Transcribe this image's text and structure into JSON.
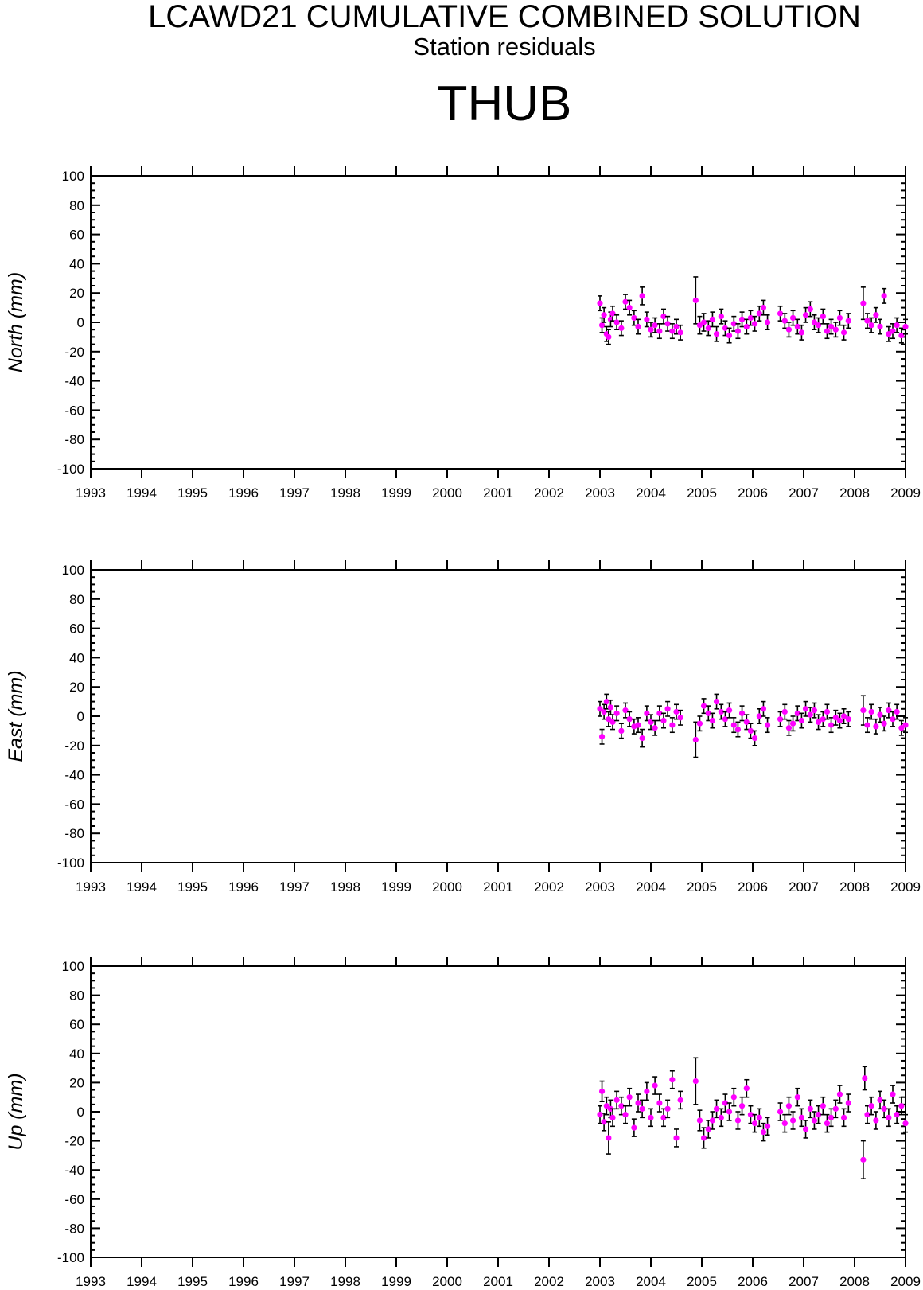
{
  "header": {
    "title": "LCAWD21 CUMULATIVE COMBINED SOLUTION",
    "subtitle": "Station residuals",
    "station": "THUB"
  },
  "colors": {
    "marker": "#ff00ff",
    "errorbar": "#000000",
    "axis": "#000000"
  },
  "chart_data": [
    {
      "type": "scatter",
      "ylabel": "North (mm)",
      "xlim": [
        1993,
        2009
      ],
      "ylim": [
        -100,
        100
      ],
      "xticks": [
        "1993",
        "1994",
        "1995",
        "1996",
        "1997",
        "1998",
        "1999",
        "2000",
        "2001",
        "2002",
        "2003",
        "2004",
        "2005",
        "2006",
        "2007",
        "2008",
        "2009"
      ],
      "yticks": [
        "100",
        "80",
        "60",
        "40",
        "20",
        "0",
        "-20",
        "-40",
        "-60",
        "-80",
        "-100"
      ],
      "grid": false,
      "x": [
        2003.0,
        2003.04,
        2003.08,
        2003.13,
        2003.17,
        2003.21,
        2003.25,
        2003.33,
        2003.42,
        2003.5,
        2003.58,
        2003.67,
        2003.75,
        2003.83,
        2003.92,
        2004.0,
        2004.08,
        2004.17,
        2004.25,
        2004.33,
        2004.42,
        2004.5,
        2004.58,
        2004.88,
        2004.96,
        2005.04,
        2005.13,
        2005.21,
        2005.29,
        2005.38,
        2005.46,
        2005.54,
        2005.63,
        2005.71,
        2005.79,
        2005.88,
        2005.96,
        2006.04,
        2006.13,
        2006.21,
        2006.29,
        2006.54,
        2006.63,
        2006.71,
        2006.79,
        2006.88,
        2006.96,
        2007.04,
        2007.13,
        2007.21,
        2007.29,
        2007.38,
        2007.46,
        2007.54,
        2007.63,
        2007.71,
        2007.79,
        2007.88,
        2008.17,
        2008.25,
        2008.33,
        2008.42,
        2008.5,
        2008.58,
        2008.67,
        2008.75,
        2008.83,
        2008.92,
        2009.0
      ],
      "y": [
        13,
        -2,
        5,
        -8,
        -10,
        2,
        6,
        0,
        -4,
        14,
        10,
        3,
        -3,
        18,
        2,
        -5,
        -2,
        -6,
        4,
        -1,
        -6,
        -3,
        -7,
        15,
        -2,
        0,
        -4,
        2,
        -8,
        4,
        -4,
        -9,
        -1,
        -6,
        2,
        -3,
        3,
        -1,
        6,
        10,
        0,
        6,
        1,
        -5,
        3,
        -3,
        -7,
        5,
        9,
        0,
        -2,
        4,
        -6,
        -3,
        -5,
        3,
        -7,
        1,
        13,
        1,
        -2,
        5,
        -3,
        18,
        -8,
        -6,
        -2,
        -9,
        -3
      ],
      "err": [
        5,
        5,
        5,
        5,
        5,
        5,
        5,
        5,
        5,
        5,
        5,
        5,
        5,
        6,
        5,
        5,
        5,
        5,
        5,
        5,
        5,
        5,
        5,
        16,
        6,
        6,
        5,
        5,
        5,
        5,
        5,
        5,
        5,
        5,
        5,
        5,
        5,
        5,
        5,
        5,
        5,
        5,
        5,
        5,
        5,
        5,
        5,
        5,
        5,
        5,
        5,
        5,
        5,
        5,
        5,
        5,
        5,
        5,
        11,
        5,
        5,
        5,
        5,
        5,
        5,
        5,
        5,
        5,
        5
      ]
    },
    {
      "type": "scatter",
      "ylabel": "East (mm)",
      "xlim": [
        1993,
        2009
      ],
      "ylim": [
        -100,
        100
      ],
      "xticks": [
        "1993",
        "1994",
        "1995",
        "1996",
        "1997",
        "1998",
        "1999",
        "2000",
        "2001",
        "2002",
        "2003",
        "2004",
        "2005",
        "2006",
        "2007",
        "2008",
        "2009"
      ],
      "yticks": [
        "100",
        "80",
        "60",
        "40",
        "20",
        "0",
        "-20",
        "-40",
        "-60",
        "-80",
        "-100"
      ],
      "grid": false,
      "x": [
        2003.0,
        2003.04,
        2003.08,
        2003.13,
        2003.17,
        2003.21,
        2003.25,
        2003.33,
        2003.42,
        2003.5,
        2003.58,
        2003.67,
        2003.75,
        2003.83,
        2003.92,
        2004.0,
        2004.08,
        2004.17,
        2004.25,
        2004.33,
        2004.42,
        2004.5,
        2004.58,
        2004.88,
        2004.96,
        2005.04,
        2005.13,
        2005.21,
        2005.29,
        2005.38,
        2005.46,
        2005.54,
        2005.63,
        2005.71,
        2005.79,
        2005.88,
        2005.96,
        2006.04,
        2006.13,
        2006.21,
        2006.29,
        2006.54,
        2006.63,
        2006.71,
        2006.79,
        2006.88,
        2006.96,
        2007.04,
        2007.13,
        2007.21,
        2007.29,
        2007.38,
        2007.46,
        2007.54,
        2007.63,
        2007.71,
        2007.79,
        2007.88,
        2008.17,
        2008.25,
        2008.33,
        2008.42,
        2008.5,
        2008.58,
        2008.67,
        2008.75,
        2008.83,
        2008.92,
        2009.0
      ],
      "y": [
        5,
        -14,
        3,
        10,
        -2,
        6,
        -4,
        2,
        -10,
        4,
        -2,
        -7,
        -6,
        -15,
        2,
        -4,
        -8,
        2,
        -3,
        5,
        -6,
        3,
        -1,
        -16,
        -5,
        7,
        2,
        -3,
        10,
        3,
        -2,
        4,
        -6,
        -9,
        2,
        -4,
        -10,
        -15,
        0,
        5,
        -6,
        -2,
        3,
        -8,
        -5,
        2,
        -3,
        5,
        1,
        4,
        -4,
        -2,
        3,
        -6,
        -1,
        -3,
        0,
        -2,
        4,
        -6,
        3,
        -7,
        1,
        -5,
        4,
        -2,
        3,
        -8,
        -6
      ],
      "err": [
        5,
        5,
        5,
        5,
        5,
        5,
        5,
        5,
        5,
        5,
        5,
        5,
        5,
        6,
        5,
        5,
        5,
        5,
        5,
        5,
        5,
        5,
        5,
        12,
        5,
        5,
        5,
        5,
        5,
        5,
        5,
        5,
        5,
        5,
        5,
        5,
        5,
        5,
        5,
        5,
        5,
        5,
        5,
        5,
        5,
        5,
        5,
        5,
        5,
        5,
        5,
        5,
        5,
        5,
        5,
        5,
        5,
        5,
        10,
        5,
        5,
        5,
        5,
        5,
        5,
        5,
        5,
        5,
        5
      ]
    },
    {
      "type": "scatter",
      "ylabel": "Up (mm)",
      "xlim": [
        1993,
        2009
      ],
      "ylim": [
        -100,
        100
      ],
      "xticks": [
        "1993",
        "1994",
        "1995",
        "1996",
        "1997",
        "1998",
        "1999",
        "2000",
        "2001",
        "2002",
        "2003",
        "2004",
        "2005",
        "2006",
        "2007",
        "2008",
        "2009"
      ],
      "yticks": [
        "100",
        "80",
        "60",
        "40",
        "20",
        "0",
        "-20",
        "-40",
        "-60",
        "-80",
        "-100"
      ],
      "grid": false,
      "x": [
        2003.0,
        2003.04,
        2003.08,
        2003.13,
        2003.17,
        2003.21,
        2003.25,
        2003.33,
        2003.42,
        2003.5,
        2003.58,
        2003.67,
        2003.75,
        2003.83,
        2003.92,
        2004.0,
        2004.08,
        2004.17,
        2004.25,
        2004.33,
        2004.42,
        2004.5,
        2004.58,
        2004.88,
        2004.96,
        2005.04,
        2005.13,
        2005.21,
        2005.29,
        2005.38,
        2005.46,
        2005.54,
        2005.63,
        2005.71,
        2005.79,
        2005.88,
        2005.96,
        2006.04,
        2006.13,
        2006.21,
        2006.29,
        2006.54,
        2006.63,
        2006.71,
        2006.79,
        2006.88,
        2006.96,
        2007.04,
        2007.13,
        2007.21,
        2007.29,
        2007.38,
        2007.46,
        2007.54,
        2007.63,
        2007.71,
        2007.79,
        2007.88,
        2008.17,
        2008.2,
        2008.25,
        2008.33,
        2008.42,
        2008.5,
        2008.58,
        2008.67,
        2008.75,
        2008.83,
        2008.92,
        2009.0
      ],
      "y": [
        -2,
        14,
        -7,
        4,
        -18,
        2,
        -4,
        8,
        4,
        -2,
        10,
        -11,
        6,
        2,
        14,
        -4,
        18,
        6,
        -4,
        2,
        22,
        -18,
        8,
        21,
        -6,
        -18,
        -12,
        -6,
        2,
        -4,
        6,
        0,
        10,
        -6,
        4,
        16,
        -2,
        -8,
        -4,
        -14,
        -10,
        0,
        -8,
        4,
        -6,
        10,
        -4,
        -12,
        2,
        -6,
        -2,
        4,
        -8,
        -4,
        2,
        12,
        -4,
        6,
        -33,
        23,
        -2,
        4,
        -6,
        8,
        2,
        -4,
        12,
        -2,
        4,
        -8
      ],
      "err": [
        6,
        7,
        6,
        6,
        11,
        6,
        6,
        6,
        6,
        6,
        6,
        6,
        6,
        6,
        6,
        6,
        6,
        6,
        6,
        6,
        6,
        6,
        6,
        16,
        7,
        7,
        6,
        6,
        6,
        6,
        6,
        6,
        6,
        6,
        6,
        6,
        6,
        6,
        6,
        6,
        6,
        6,
        6,
        6,
        6,
        6,
        6,
        6,
        6,
        6,
        6,
        6,
        6,
        6,
        6,
        6,
        6,
        6,
        13,
        8,
        6,
        6,
        6,
        6,
        6,
        6,
        6,
        6,
        6,
        6
      ]
    }
  ]
}
